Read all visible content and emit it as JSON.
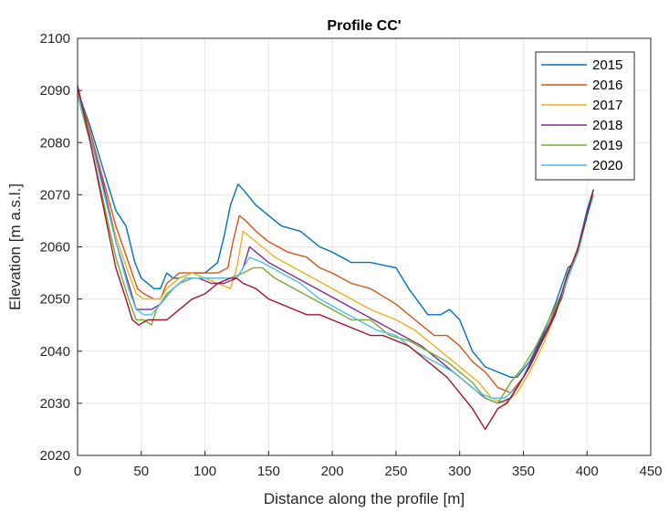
{
  "chart_data": {
    "type": "line",
    "title": "Profile CC'",
    "xlabel": "Distance along the profile [m]",
    "ylabel": "Elevation [m a.s.l.]",
    "xlim": [
      0,
      450
    ],
    "ylim": [
      2020,
      2100
    ],
    "xticks": [
      0,
      50,
      100,
      150,
      200,
      250,
      300,
      350,
      400,
      450
    ],
    "yticks": [
      2020,
      2030,
      2040,
      2050,
      2060,
      2070,
      2080,
      2090,
      2100
    ],
    "grid": true,
    "legend_position": "top-right",
    "series": [
      {
        "name": "2015",
        "color": "#0072BD",
        "points": [
          [
            0,
            2090
          ],
          [
            10,
            2083
          ],
          [
            20,
            2075
          ],
          [
            30,
            2067
          ],
          [
            38,
            2064
          ],
          [
            45,
            2057
          ],
          [
            50,
            2054
          ],
          [
            55,
            2053
          ],
          [
            60,
            2052
          ],
          [
            65,
            2052
          ],
          [
            70,
            2055
          ],
          [
            75,
            2054
          ],
          [
            80,
            2054
          ],
          [
            90,
            2055
          ],
          [
            100,
            2055
          ],
          [
            105,
            2056
          ],
          [
            110,
            2057
          ],
          [
            115,
            2062
          ],
          [
            120,
            2068
          ],
          [
            126,
            2072
          ],
          [
            130,
            2071
          ],
          [
            140,
            2068
          ],
          [
            150,
            2066
          ],
          [
            160,
            2064
          ],
          [
            175,
            2063
          ],
          [
            190,
            2060
          ],
          [
            200,
            2059
          ],
          [
            215,
            2057
          ],
          [
            230,
            2057
          ],
          [
            250,
            2056
          ],
          [
            260,
            2052
          ],
          [
            275,
            2047
          ],
          [
            285,
            2047
          ],
          [
            292,
            2048
          ],
          [
            300,
            2046
          ],
          [
            310,
            2040
          ],
          [
            320,
            2037
          ],
          [
            330,
            2036
          ],
          [
            340,
            2035
          ],
          [
            345,
            2035
          ],
          [
            355,
            2038
          ],
          [
            365,
            2043
          ],
          [
            375,
            2049
          ],
          [
            385,
            2056
          ],
          [
            390,
            2057
          ],
          [
            395,
            2062
          ],
          [
            400,
            2067
          ],
          [
            405,
            2071
          ]
        ]
      },
      {
        "name": "2016",
        "color": "#D95319",
        "points": [
          [
            0,
            2090
          ],
          [
            10,
            2082
          ],
          [
            20,
            2073
          ],
          [
            30,
            2064
          ],
          [
            40,
            2057
          ],
          [
            47,
            2052
          ],
          [
            52,
            2051
          ],
          [
            60,
            2050
          ],
          [
            65,
            2050
          ],
          [
            70,
            2053
          ],
          [
            80,
            2055
          ],
          [
            90,
            2055
          ],
          [
            100,
            2055
          ],
          [
            110,
            2055
          ],
          [
            118,
            2056
          ],
          [
            122,
            2061
          ],
          [
            127,
            2066
          ],
          [
            132,
            2065
          ],
          [
            140,
            2063
          ],
          [
            150,
            2061
          ],
          [
            165,
            2059
          ],
          [
            180,
            2058
          ],
          [
            190,
            2056
          ],
          [
            200,
            2055
          ],
          [
            215,
            2053
          ],
          [
            230,
            2052
          ],
          [
            250,
            2049
          ],
          [
            265,
            2046
          ],
          [
            280,
            2043
          ],
          [
            290,
            2043
          ],
          [
            300,
            2041
          ],
          [
            310,
            2038
          ],
          [
            320,
            2036
          ],
          [
            330,
            2033
          ],
          [
            340,
            2032
          ],
          [
            350,
            2035
          ],
          [
            360,
            2040
          ],
          [
            370,
            2045
          ],
          [
            380,
            2051
          ],
          [
            387,
            2056
          ],
          [
            393,
            2059
          ],
          [
            400,
            2066
          ],
          [
            405,
            2070
          ]
        ]
      },
      {
        "name": "2017",
        "color": "#EDB120",
        "points": [
          [
            0,
            2089
          ],
          [
            10,
            2081
          ],
          [
            20,
            2072
          ],
          [
            30,
            2062
          ],
          [
            40,
            2055
          ],
          [
            46,
            2051
          ],
          [
            52,
            2050
          ],
          [
            58,
            2050
          ],
          [
            65,
            2050
          ],
          [
            70,
            2052
          ],
          [
            80,
            2054
          ],
          [
            90,
            2055
          ],
          [
            100,
            2054
          ],
          [
            110,
            2053
          ],
          [
            120,
            2052
          ],
          [
            125,
            2056
          ],
          [
            130,
            2063
          ],
          [
            135,
            2062
          ],
          [
            145,
            2060
          ],
          [
            155,
            2058
          ],
          [
            170,
            2056
          ],
          [
            185,
            2054
          ],
          [
            200,
            2052
          ],
          [
            215,
            2050
          ],
          [
            230,
            2048
          ],
          [
            250,
            2046
          ],
          [
            265,
            2044
          ],
          [
            280,
            2041
          ],
          [
            295,
            2038
          ],
          [
            305,
            2036
          ],
          [
            315,
            2034
          ],
          [
            325,
            2031
          ],
          [
            335,
            2030
          ],
          [
            345,
            2032
          ],
          [
            355,
            2036
          ],
          [
            365,
            2041
          ],
          [
            375,
            2047
          ],
          [
            385,
            2055
          ],
          [
            393,
            2059
          ],
          [
            400,
            2066
          ],
          [
            405,
            2070
          ]
        ]
      },
      {
        "name": "2018",
        "color": "#7E2F8E",
        "points": [
          [
            0,
            2089
          ],
          [
            10,
            2081
          ],
          [
            20,
            2072
          ],
          [
            30,
            2061
          ],
          [
            40,
            2053
          ],
          [
            46,
            2048
          ],
          [
            52,
            2048
          ],
          [
            58,
            2048
          ],
          [
            65,
            2049
          ],
          [
            75,
            2052
          ],
          [
            85,
            2054
          ],
          [
            95,
            2054
          ],
          [
            105,
            2053
          ],
          [
            115,
            2053
          ],
          [
            125,
            2054
          ],
          [
            130,
            2056
          ],
          [
            135,
            2060
          ],
          [
            140,
            2059
          ],
          [
            150,
            2057
          ],
          [
            165,
            2055
          ],
          [
            180,
            2053
          ],
          [
            195,
            2051
          ],
          [
            210,
            2049
          ],
          [
            225,
            2047
          ],
          [
            240,
            2045
          ],
          [
            255,
            2043
          ],
          [
            270,
            2041
          ],
          [
            285,
            2038
          ],
          [
            300,
            2035
          ],
          [
            310,
            2033
          ],
          [
            320,
            2031
          ],
          [
            330,
            2030
          ],
          [
            340,
            2031
          ],
          [
            350,
            2035
          ],
          [
            360,
            2040
          ],
          [
            370,
            2045
          ],
          [
            380,
            2050
          ],
          [
            387,
            2056
          ],
          [
            393,
            2060
          ],
          [
            400,
            2066
          ],
          [
            405,
            2070
          ]
        ]
      },
      {
        "name": "2019",
        "color": "#77AC30",
        "points": [
          [
            0,
            2089
          ],
          [
            10,
            2080
          ],
          [
            20,
            2069
          ],
          [
            30,
            2058
          ],
          [
            40,
            2050
          ],
          [
            46,
            2046
          ],
          [
            52,
            2046
          ],
          [
            58,
            2045
          ],
          [
            62,
            2048
          ],
          [
            70,
            2051
          ],
          [
            80,
            2053
          ],
          [
            90,
            2054
          ],
          [
            100,
            2054
          ],
          [
            110,
            2054
          ],
          [
            120,
            2054
          ],
          [
            130,
            2055
          ],
          [
            138,
            2056
          ],
          [
            145,
            2056
          ],
          [
            155,
            2054
          ],
          [
            170,
            2052
          ],
          [
            185,
            2050
          ],
          [
            200,
            2048
          ],
          [
            215,
            2046
          ],
          [
            230,
            2046
          ],
          [
            245,
            2043
          ],
          [
            260,
            2042
          ],
          [
            275,
            2040
          ],
          [
            290,
            2038
          ],
          [
            300,
            2036
          ],
          [
            310,
            2034
          ],
          [
            320,
            2031
          ],
          [
            330,
            2030
          ],
          [
            340,
            2034
          ],
          [
            350,
            2037
          ],
          [
            360,
            2041
          ],
          [
            370,
            2046
          ],
          [
            380,
            2051
          ],
          [
            387,
            2056
          ],
          [
            393,
            2060
          ],
          [
            400,
            2066
          ],
          [
            405,
            2070
          ]
        ]
      },
      {
        "name": "2020",
        "color": "#4DBEEE",
        "points": [
          [
            0,
            2089
          ],
          [
            10,
            2081
          ],
          [
            20,
            2071
          ],
          [
            30,
            2061
          ],
          [
            40,
            2052
          ],
          [
            46,
            2048
          ],
          [
            52,
            2047
          ],
          [
            58,
            2047
          ],
          [
            65,
            2049
          ],
          [
            75,
            2052
          ],
          [
            85,
            2054
          ],
          [
            95,
            2054
          ],
          [
            105,
            2054
          ],
          [
            115,
            2054
          ],
          [
            125,
            2054
          ],
          [
            135,
            2058
          ],
          [
            145,
            2057
          ],
          [
            160,
            2055
          ],
          [
            175,
            2053
          ],
          [
            190,
            2050
          ],
          [
            205,
            2048
          ],
          [
            220,
            2046
          ],
          [
            235,
            2044
          ],
          [
            250,
            2043
          ],
          [
            265,
            2040
          ],
          [
            280,
            2038
          ],
          [
            295,
            2036
          ],
          [
            305,
            2034
          ],
          [
            315,
            2032
          ],
          [
            325,
            2031
          ],
          [
            335,
            2031
          ],
          [
            345,
            2033
          ],
          [
            355,
            2037
          ],
          [
            365,
            2042
          ],
          [
            375,
            2047
          ],
          [
            385,
            2054
          ],
          [
            393,
            2059
          ],
          [
            400,
            2066
          ],
          [
            405,
            2070
          ]
        ]
      },
      {
        "name": "",
        "color": "#A2142F",
        "points": [
          [
            0,
            2091
          ],
          [
            10,
            2080
          ],
          [
            20,
            2068
          ],
          [
            30,
            2056
          ],
          [
            38,
            2050
          ],
          [
            43,
            2046
          ],
          [
            48,
            2045
          ],
          [
            55,
            2046
          ],
          [
            60,
            2046
          ],
          [
            65,
            2046
          ],
          [
            70,
            2046
          ],
          [
            75,
            2047
          ],
          [
            80,
            2048
          ],
          [
            90,
            2050
          ],
          [
            100,
            2051
          ],
          [
            110,
            2053
          ],
          [
            120,
            2054
          ],
          [
            125,
            2054
          ],
          [
            130,
            2053
          ],
          [
            140,
            2052
          ],
          [
            150,
            2050
          ],
          [
            160,
            2049
          ],
          [
            170,
            2048
          ],
          [
            180,
            2047
          ],
          [
            190,
            2047
          ],
          [
            200,
            2046
          ],
          [
            210,
            2045
          ],
          [
            220,
            2044
          ],
          [
            230,
            2043
          ],
          [
            240,
            2043
          ],
          [
            250,
            2042
          ],
          [
            260,
            2041
          ],
          [
            270,
            2039
          ],
          [
            280,
            2037
          ],
          [
            290,
            2035
          ],
          [
            300,
            2032
          ],
          [
            310,
            2029
          ],
          [
            315,
            2027
          ],
          [
            320,
            2025
          ],
          [
            325,
            2027
          ],
          [
            330,
            2029
          ],
          [
            337,
            2030
          ],
          [
            345,
            2033
          ],
          [
            355,
            2037
          ],
          [
            365,
            2042
          ],
          [
            375,
            2047
          ],
          [
            385,
            2055
          ],
          [
            392,
            2059
          ],
          [
            400,
            2066
          ],
          [
            405,
            2071
          ]
        ]
      }
    ]
  }
}
